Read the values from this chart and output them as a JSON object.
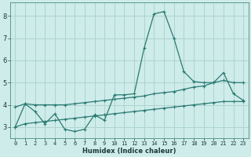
{
  "xlabel": "Humidex (Indice chaleur)",
  "bg_color": "#ceecea",
  "grid_color": "#aed4d0",
  "line_color": "#2a7a72",
  "xlim": [
    -0.5,
    23.5
  ],
  "ylim": [
    2.5,
    8.6
  ],
  "yticks": [
    3,
    4,
    5,
    6,
    7,
    8
  ],
  "xticks": [
    0,
    1,
    2,
    3,
    4,
    5,
    6,
    7,
    8,
    9,
    10,
    11,
    12,
    13,
    14,
    15,
    16,
    17,
    18,
    19,
    20,
    21,
    22,
    23
  ],
  "series1_x": [
    0,
    1,
    2,
    3,
    4,
    5,
    6,
    7,
    8,
    9,
    10,
    11,
    12,
    13,
    14,
    15,
    16,
    17,
    18,
    19,
    20,
    21,
    22,
    23
  ],
  "series1_y": [
    3.0,
    4.05,
    3.7,
    3.15,
    3.6,
    2.9,
    2.8,
    2.9,
    3.55,
    3.3,
    4.45,
    4.45,
    4.5,
    6.55,
    8.1,
    8.2,
    7.0,
    5.5,
    5.05,
    5.0,
    5.0,
    5.45,
    4.5,
    4.2
  ],
  "series2_x": [
    0,
    1,
    2,
    3,
    4,
    5,
    6,
    7,
    8,
    9,
    10,
    11,
    12,
    13,
    14,
    15,
    16,
    17,
    18,
    19,
    20,
    21,
    22,
    23
  ],
  "series2_y": [
    3.9,
    4.05,
    4.0,
    4.0,
    4.0,
    4.0,
    4.05,
    4.1,
    4.15,
    4.2,
    4.25,
    4.3,
    4.35,
    4.4,
    4.5,
    4.55,
    4.6,
    4.7,
    4.8,
    4.85,
    5.0,
    5.1,
    5.0,
    5.0
  ],
  "series3_x": [
    0,
    1,
    2,
    3,
    4,
    5,
    6,
    7,
    8,
    9,
    10,
    11,
    12,
    13,
    14,
    15,
    16,
    17,
    18,
    19,
    20,
    21,
    22,
    23
  ],
  "series3_y": [
    3.0,
    3.15,
    3.2,
    3.25,
    3.3,
    3.35,
    3.4,
    3.45,
    3.5,
    3.55,
    3.6,
    3.65,
    3.7,
    3.75,
    3.8,
    3.85,
    3.9,
    3.95,
    4.0,
    4.05,
    4.1,
    4.15,
    4.15,
    4.15
  ]
}
